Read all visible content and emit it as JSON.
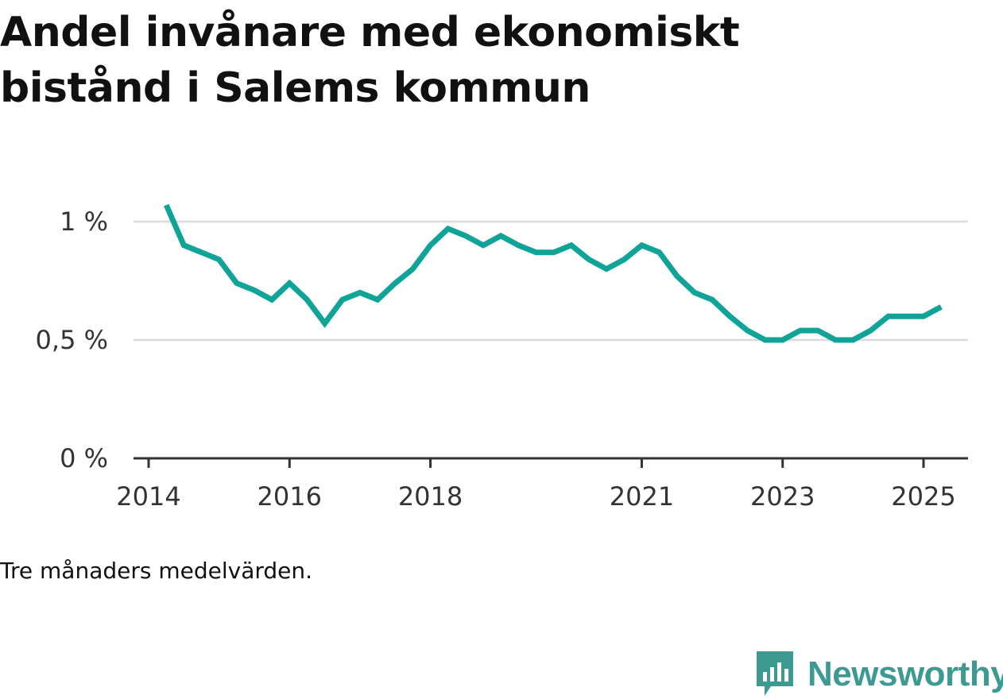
{
  "title": "Andel invånare med ekonomiskt bistånd i Salems kommun",
  "note": "Tre månaders medelvärden.",
  "brand": {
    "name": "Newsworthy",
    "icon": "newsworthy-logo-icon",
    "color": "#3d9a93"
  },
  "colors": {
    "line": "#10a397",
    "grid": "#d9d9d9",
    "axis": "#333333"
  },
  "chart_data": {
    "type": "line",
    "title": "Andel invånare med ekonomiskt bistånd i Salems kommun",
    "xlabel": "",
    "ylabel": "",
    "ylim": [
      0,
      1.2
    ],
    "y_ticks": [
      0,
      0.5,
      1
    ],
    "y_tick_labels": [
      "0 %",
      "0,5 %",
      "1 %"
    ],
    "x_ticks": [
      "2014",
      "2016",
      "2018",
      "2021",
      "2023",
      "2025"
    ],
    "x_tick_dates": [
      "2014-01",
      "2016-01",
      "2018-01",
      "2021-01",
      "2023-01",
      "2025-01"
    ],
    "grid": true,
    "legend": "none",
    "series": [
      {
        "color": "#10a397",
        "x": [
          "2014-04",
          "2014-07",
          "2014-10",
          "2015-01",
          "2015-04",
          "2015-07",
          "2015-10",
          "2016-01",
          "2016-04",
          "2016-07",
          "2016-10",
          "2017-01",
          "2017-04",
          "2017-07",
          "2017-10",
          "2018-01",
          "2018-04",
          "2018-07",
          "2018-10",
          "2019-01",
          "2019-04",
          "2019-07",
          "2019-10",
          "2020-01",
          "2020-04",
          "2020-07",
          "2020-10",
          "2021-01",
          "2021-04",
          "2021-07",
          "2021-10",
          "2022-01",
          "2022-04",
          "2022-07",
          "2022-10",
          "2023-01",
          "2023-04",
          "2023-07",
          "2023-10",
          "2024-01",
          "2024-04",
          "2024-07",
          "2024-10",
          "2025-01",
          "2025-04"
        ],
        "values": [
          1.07,
          0.9,
          0.87,
          0.84,
          0.74,
          0.71,
          0.67,
          0.74,
          0.67,
          0.57,
          0.67,
          0.7,
          0.67,
          0.74,
          0.8,
          0.9,
          0.97,
          0.94,
          0.9,
          0.94,
          0.9,
          0.87,
          0.87,
          0.9,
          0.84,
          0.8,
          0.84,
          0.9,
          0.87,
          0.77,
          0.7,
          0.67,
          0.6,
          0.54,
          0.5,
          0.5,
          0.54,
          0.54,
          0.5,
          0.5,
          0.54,
          0.6,
          0.6,
          0.6,
          0.64
        ]
      }
    ]
  }
}
